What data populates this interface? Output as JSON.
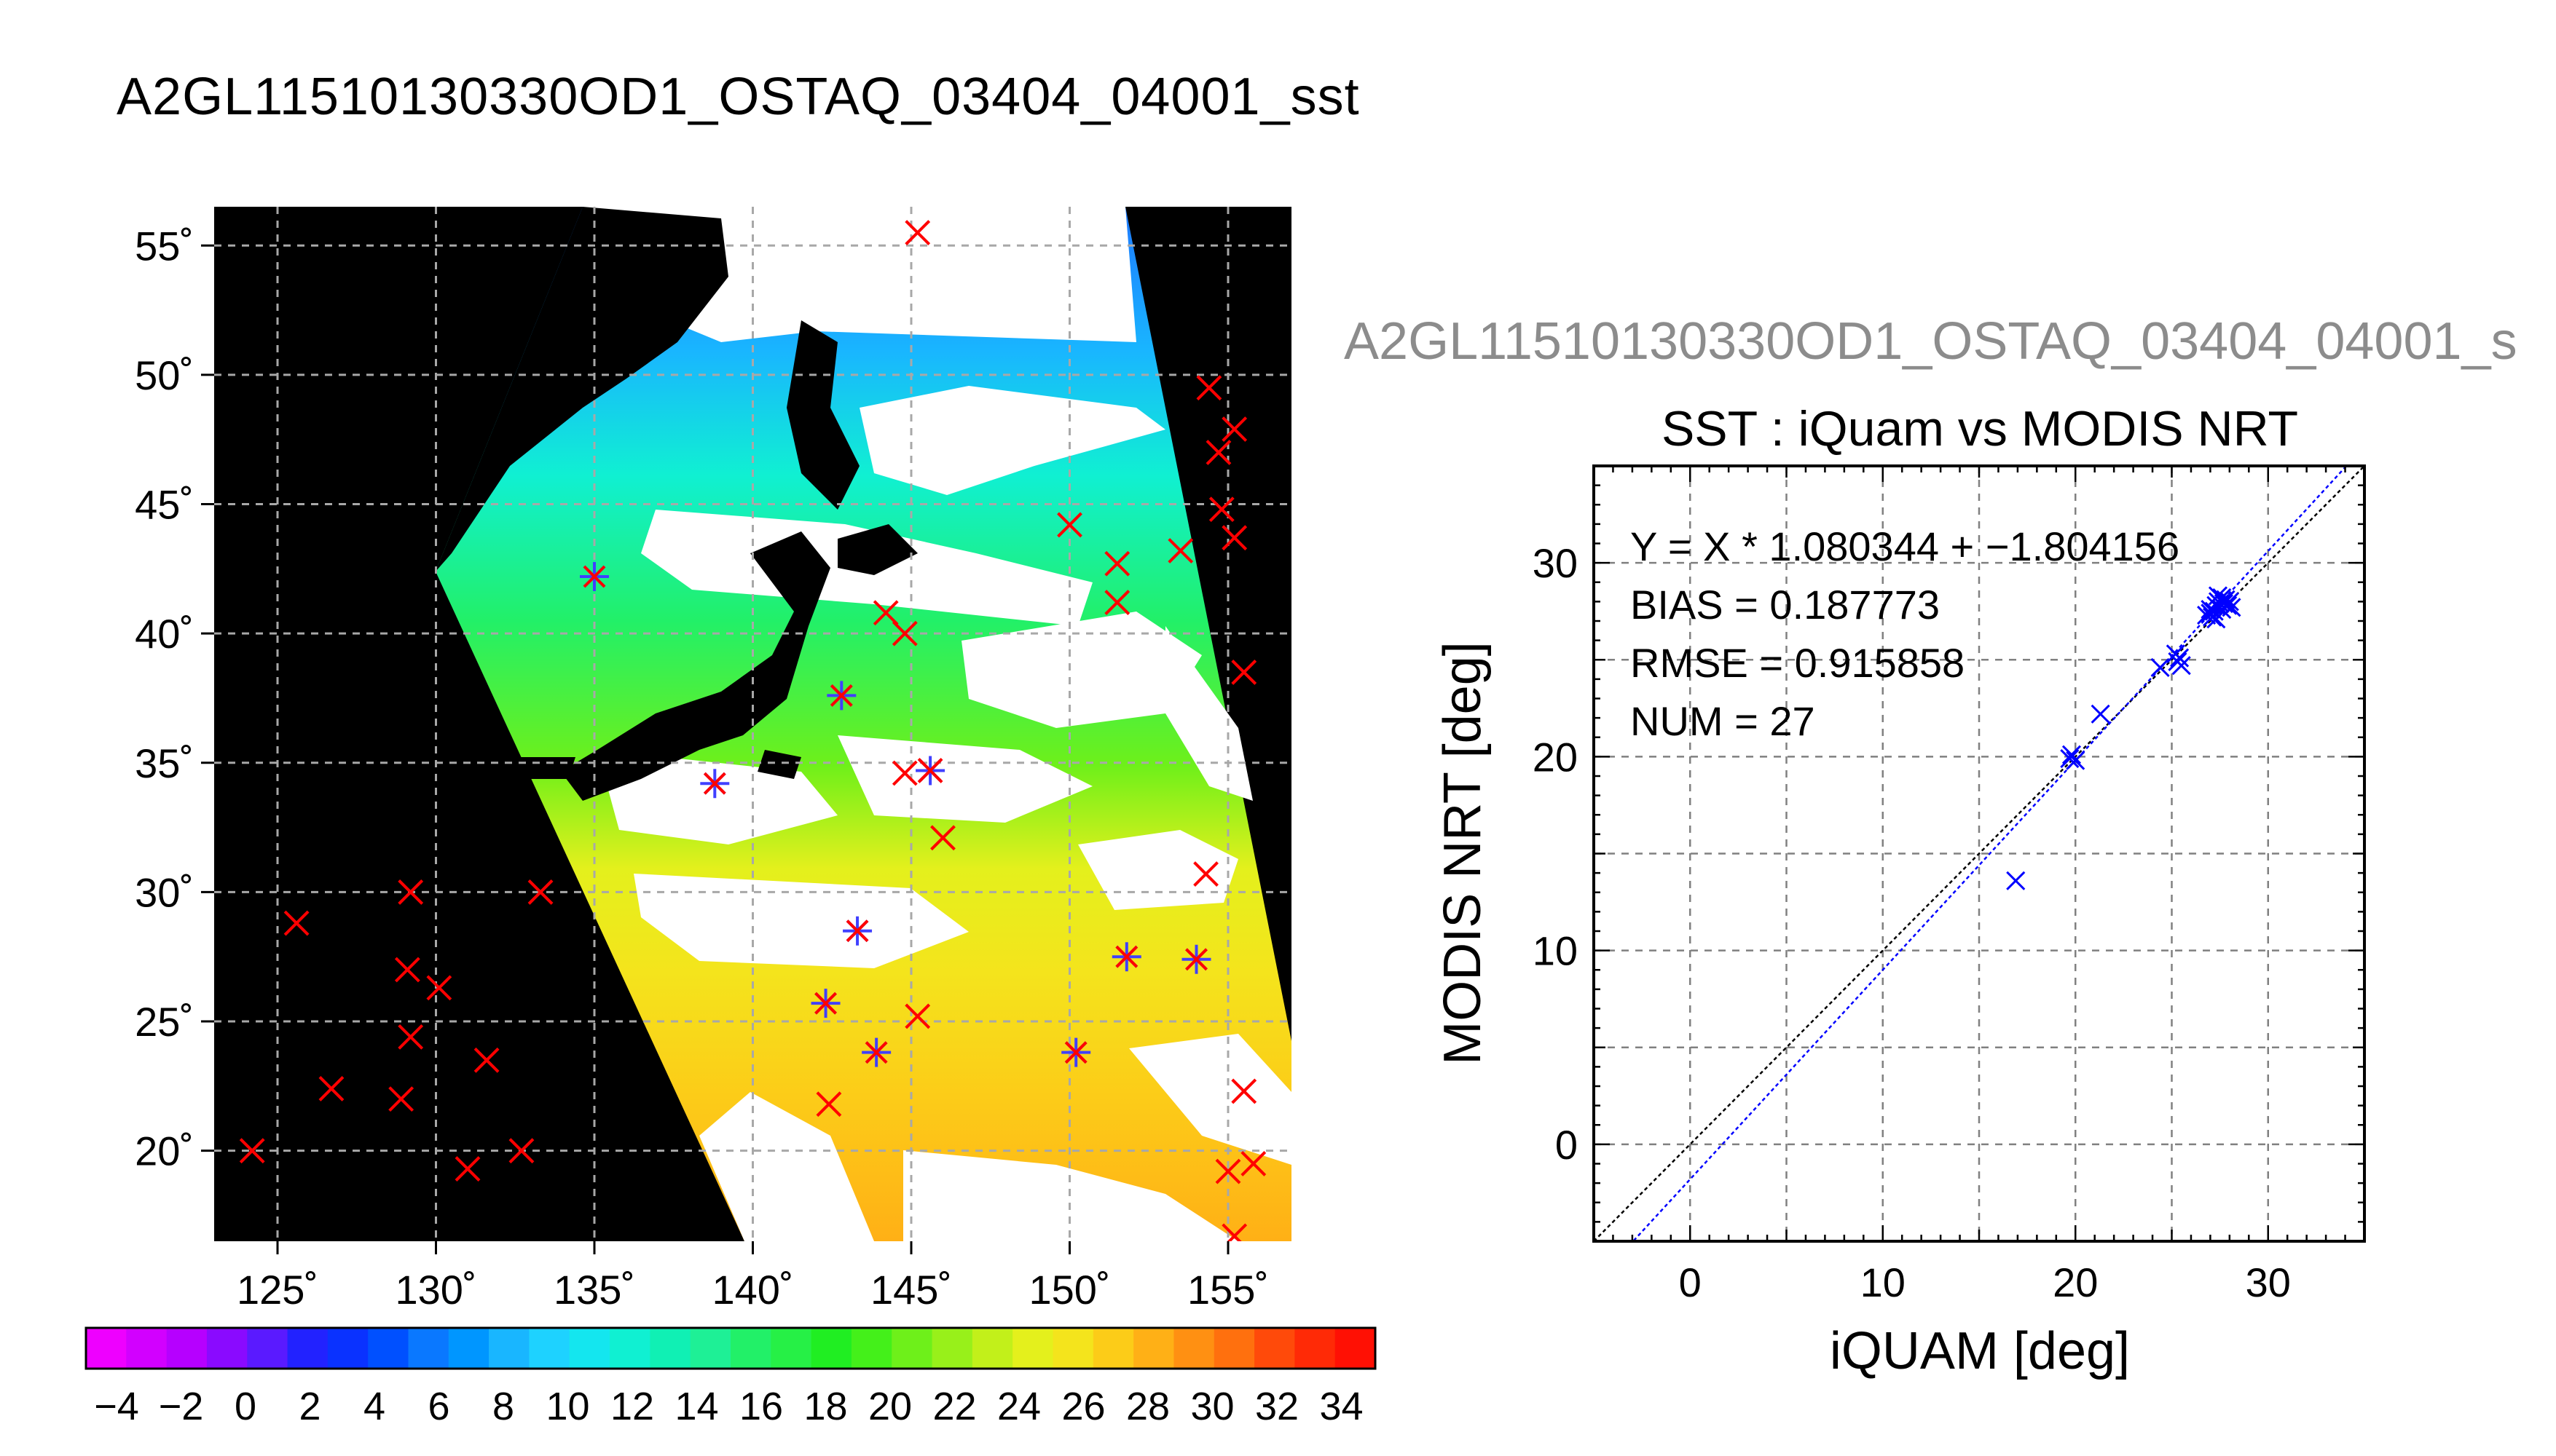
{
  "main_title": "A2GL11510130330OD1_OSTAQ_03404_04001_sst",
  "map": {
    "lat_ticks": [
      "55˚",
      "50˚",
      "45˚",
      "40˚",
      "35˚",
      "30˚",
      "25˚",
      "20˚"
    ],
    "lon_ticks": [
      "125˚",
      "130˚",
      "135˚",
      "140˚",
      "145˚",
      "150˚",
      "155˚"
    ],
    "lat_range": [
      16.5,
      56.5
    ],
    "lon_range": [
      123,
      157
    ],
    "colors": {
      "land_bg": "#000000",
      "cloud": "#ffffff",
      "grid": "#a8a8a8",
      "iquam_marker": "#ff0000",
      "matched_marker": "#4040ff"
    },
    "iquam_points": [
      [
        145.2,
        55.5
      ],
      [
        154.4,
        49.5
      ],
      [
        155.2,
        47.9
      ],
      [
        154.7,
        47
      ],
      [
        154.8,
        44.8
      ],
      [
        155.2,
        43.7
      ],
      [
        150,
        44.2
      ],
      [
        151.5,
        42.7
      ],
      [
        153.5,
        43.2
      ],
      [
        151.5,
        41.2
      ],
      [
        155.5,
        38.5
      ],
      [
        144.8,
        40
      ],
      [
        144.2,
        40.8
      ],
      [
        144.8,
        34.6
      ],
      [
        145.6,
        34.7
      ],
      [
        146,
        32.1
      ],
      [
        154.3,
        30.7
      ],
      [
        133.3,
        30
      ],
      [
        129.2,
        30
      ],
      [
        125.6,
        28.8
      ],
      [
        129.1,
        27
      ],
      [
        130.1,
        26.3
      ],
      [
        129.2,
        24.4
      ],
      [
        126.7,
        22.4
      ],
      [
        128.9,
        22
      ],
      [
        131.6,
        23.5
      ],
      [
        131,
        19.3
      ],
      [
        132.7,
        20
      ],
      [
        124.2,
        20
      ],
      [
        145.2,
        25.2
      ],
      [
        142.4,
        21.8
      ],
      [
        155.5,
        22.3
      ],
      [
        155,
        19.2
      ],
      [
        155.8,
        19.5
      ],
      [
        155.2,
        16.7
      ]
    ],
    "matched_points": [
      [
        135,
        42.2
      ],
      [
        142.8,
        37.6
      ],
      [
        138.8,
        34.2
      ],
      [
        145.6,
        34.7
      ],
      [
        143.3,
        28.5
      ],
      [
        142.3,
        25.7
      ],
      [
        143.9,
        23.8
      ],
      [
        150.2,
        23.8
      ],
      [
        151.8,
        27.5
      ],
      [
        154,
        27.4
      ]
    ]
  },
  "colorbar": {
    "labels": [
      "−4",
      "−2",
      "0",
      "2",
      "4",
      "6",
      "8",
      "10",
      "12",
      "14",
      "16",
      "18",
      "20",
      "22",
      "24",
      "26",
      "28",
      "30",
      "32",
      "34"
    ],
    "colors": [
      "#ee00ff",
      "#d200ff",
      "#b600ff",
      "#8a0aff",
      "#5a1aff",
      "#2222ff",
      "#0a32ff",
      "#0050ff",
      "#0a78ff",
      "#0096ff",
      "#19b6ff",
      "#1ed2ff",
      "#14e6ef",
      "#10f0d2",
      "#10f0b4",
      "#1ef096",
      "#22f068",
      "#26f046",
      "#20ee22",
      "#44f01a",
      "#6ef01a",
      "#98f01a",
      "#c2f01a",
      "#e4f01c",
      "#f4e41c",
      "#fccc18",
      "#ffb016",
      "#ff9012",
      "#ff700e",
      "#ff4a0a",
      "#ff2a06",
      "#ff1004"
    ]
  },
  "scatter": {
    "subtitle": "A2GL11510130330OD1_OSTAQ_03404_04001_s",
    "title": "SST : iQuam vs MODIS NRT",
    "xlabel": "iQUAM [deg]",
    "ylabel": "MODIS NRT [deg]",
    "stats": {
      "fit": "Y = X * 1.080344 + −1.804156",
      "bias": "BIAS = 0.187773",
      "rmse": "RMSE = 0.915858",
      "num": "NUM = 27"
    }
  },
  "chart_data": {
    "type": "scatter",
    "title": "SST : iQuam vs MODIS NRT",
    "xlabel": "iQUAM [deg]",
    "ylabel": "MODIS NRT [deg]",
    "xlim": [
      -5,
      35
    ],
    "ylim": [
      -5,
      35
    ],
    "x_ticks": [
      0,
      10,
      20,
      30
    ],
    "y_ticks": [
      0,
      10,
      20,
      30
    ],
    "grid": true,
    "series": [
      {
        "x": [
          16.9,
          19.7,
          20.0,
          19.8,
          21.3,
          24.4,
          25.3,
          25.5,
          25.2,
          25.4,
          26.8,
          27.0,
          27.1,
          27.3,
          27.0,
          27.4,
          27.6,
          27.5,
          27.8,
          27.2,
          27.9,
          27.6,
          28.0,
          27.3,
          27.7,
          27.4,
          28.1
        ],
        "y": [
          13.6,
          19.9,
          19.8,
          20.1,
          22.2,
          24.6,
          24.9,
          24.7,
          25.3,
          25.1,
          27.3,
          27.6,
          27.2,
          27.8,
          27.4,
          28.0,
          27.6,
          27.9,
          28.1,
          27.5,
          27.8,
          28.2,
          28.0,
          27.1,
          27.9,
          28.3,
          27.7
        ]
      }
    ],
    "lines": [
      {
        "slope": 1.0,
        "intercept": 0.0,
        "color": "#000000"
      },
      {
        "slope": 1.080344,
        "intercept": -1.804156,
        "color": "#0000ff"
      }
    ],
    "marker_color": "#0000ff"
  }
}
